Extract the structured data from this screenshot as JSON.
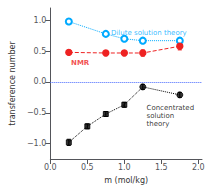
{
  "chart_data": {
    "type": "line",
    "xlabel": "m (mol/kg)",
    "ylabel": "transference number",
    "xlim": [
      0.0,
      2.05
    ],
    "ylim": [
      -1.25,
      1.2
    ],
    "xticks": [
      {
        "value": 0.0,
        "label": "0.0"
      },
      {
        "value": 0.5,
        "label": "0.5"
      },
      {
        "value": 1.0,
        "label": "1.0"
      },
      {
        "value": 1.5,
        "label": "1.5"
      },
      {
        "value": 2.0,
        "label": "2.0"
      }
    ],
    "yticks": [
      {
        "value": -1.0,
        "label": "−1.0"
      },
      {
        "value": -0.5,
        "label": "−0.5"
      },
      {
        "value": 0.0,
        "label": "0.0"
      },
      {
        "value": 0.5,
        "label": "0.5"
      },
      {
        "value": 1.0,
        "label": "1.0"
      }
    ],
    "grid": false,
    "reference_lines": [
      {
        "y": 0.0,
        "color": "#4466ff",
        "line_style": "dotted"
      }
    ],
    "series": [
      {
        "color": "#00aaff",
        "marker": "open_circle",
        "line_style": "dotted",
        "x": [
          0.25,
          0.75,
          1.0,
          1.25,
          1.75
        ],
        "values": [
          0.98,
          0.78,
          0.7,
          0.67,
          0.67
        ],
        "yerr": [
          0.04,
          0.04,
          0.04,
          0.04,
          0.05
        ]
      },
      {
        "color": "#ee2222",
        "marker": "circle",
        "line_style": "dashed",
        "x": [
          0.25,
          0.75,
          1.0,
          1.25,
          1.75
        ],
        "values": [
          0.48,
          0.47,
          0.47,
          0.47,
          0.58
        ],
        "yerr": [
          0.035,
          0.035,
          0.035,
          0.05,
          0.06
        ]
      },
      {
        "color": "black",
        "marker": "none",
        "line_style": "dotted",
        "x": [
          0.25,
          0.5,
          0.75,
          1.0,
          1.25,
          1.75
        ],
        "values": [
          -0.98,
          -0.72,
          -0.52,
          -0.37,
          -0.08,
          -0.21
        ]
      },
      {
        "color": "black",
        "marker": "square",
        "line_style": "none",
        "x": [
          0.25,
          0.5,
          0.75,
          1.0
        ],
        "values": [
          -0.98,
          -0.72,
          -0.52,
          -0.37
        ],
        "yerr": [
          0.05,
          0.04,
          0.04,
          0.04
        ]
      },
      {
        "color": "black",
        "marker": "circle",
        "line_style": "none",
        "x": [
          1.25,
          1.75
        ],
        "values": [
          -0.08,
          -0.21
        ],
        "yerr": [
          0.04,
          0.04
        ]
      }
    ],
    "annotations": [
      {
        "text": "Dilute solution theory",
        "x": 0.82,
        "y": 0.8,
        "color": "#00aaff"
      },
      {
        "text": "NMR",
        "x": 0.28,
        "y": 0.3,
        "color": "#ee2222",
        "bold": true
      },
      {
        "text": "Concentrated\nsolution\ntheory",
        "x": 1.3,
        "y": -0.55,
        "color": "black"
      }
    ]
  }
}
